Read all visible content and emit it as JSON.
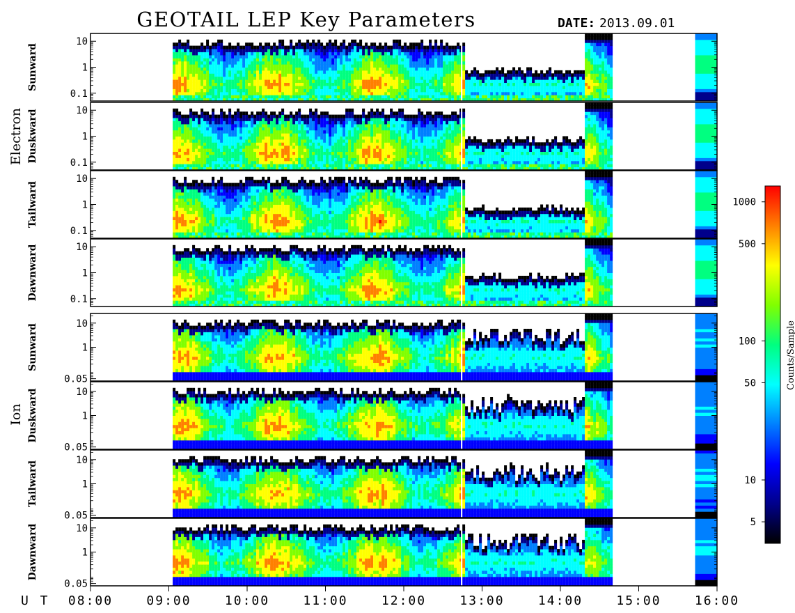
{
  "title": "GEOTAIL LEP Key Parameters",
  "date_label": "DATE:",
  "date_value": "2013.09.01",
  "x_axis_unit": "U T",
  "colorbar": {
    "label": "Counts/Sample",
    "scale": "log",
    "range": [
      3.5,
      1300
    ],
    "ticks": [
      "1000",
      "500",
      "100",
      "50",
      "10",
      "5"
    ],
    "tick_values": [
      1000,
      500,
      100,
      50,
      10,
      5
    ],
    "colors": [
      "#000000",
      "#00008b",
      "#0000ff",
      "#0080ff",
      "#00ffff",
      "#00ff80",
      "#80ff00",
      "#ffff00",
      "#ff8000",
      "#ff0000"
    ]
  },
  "chart_data": {
    "type": "heatmap",
    "x_ticks": [
      "08:00",
      "09:00",
      "10:00",
      "11:00",
      "12:00",
      "13:00",
      "14:00",
      "15:00",
      "16:00"
    ],
    "xlim_hours": [
      8,
      16
    ],
    "data_start_hour": 9.05,
    "data_end_hour": 14.65,
    "gap_hour": 12.73,
    "groups": [
      {
        "name": "Electron",
        "y_scale": "log",
        "y_ticks": [
          "10",
          "1",
          "0.1"
        ],
        "y_tick_values": [
          10,
          1,
          0.1
        ],
        "ylim": [
          0.05,
          20
        ],
        "panels": [
          {
            "label": "Sunward"
          },
          {
            "label": "Duskward"
          },
          {
            "label": "Tailward"
          },
          {
            "label": "Dawnward"
          }
        ]
      },
      {
        "name": "Ion",
        "y_scale": "log",
        "y_ticks": [
          "10",
          "1",
          "0.05"
        ],
        "y_tick_values": [
          10,
          1,
          0.05
        ],
        "ylim": [
          0.04,
          25
        ],
        "panels": [
          {
            "label": "Sunward"
          },
          {
            "label": "Duskward"
          },
          {
            "label": "Tailward"
          },
          {
            "label": "Dawnward"
          }
        ]
      }
    ]
  }
}
